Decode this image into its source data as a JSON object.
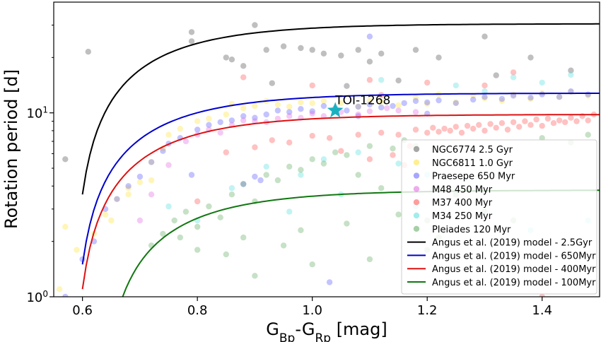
{
  "chart_data": {
    "type": "scatter",
    "title": "",
    "xlabel": {
      "base1": "G",
      "sub1": "Bp",
      "mid": "-G",
      "sub2": "Rp",
      "unit": " [mag]"
    },
    "ylabel": "Rotation period [d]",
    "xlim": [
      0.55,
      1.5
    ],
    "ylim": [
      1,
      40
    ],
    "yscale": "log",
    "grid": false,
    "legend_position": "lower-right",
    "x_ticks": [
      {
        "value": 0.6,
        "label": "0.6"
      },
      {
        "value": 0.8,
        "label": "0.8"
      },
      {
        "value": 1.0,
        "label": "1.0"
      },
      {
        "value": 1.2,
        "label": "1.2"
      },
      {
        "value": 1.4,
        "label": "1.4"
      }
    ],
    "y_ticks": [
      {
        "value": 1,
        "base": "10",
        "exp": "0"
      },
      {
        "value": 10,
        "base": "10",
        "exp": "1"
      }
    ],
    "series": [
      {
        "name": "NGC6774 2.5 Gyr",
        "color": "#808080",
        "opacity": 0.5,
        "points": [
          [
            0.57,
            5.6
          ],
          [
            0.61,
            21.5
          ],
          [
            0.79,
            27.5
          ],
          [
            0.79,
            24.5
          ],
          [
            0.85,
            20
          ],
          [
            0.86,
            19.5
          ],
          [
            0.88,
            18
          ],
          [
            0.9,
            30
          ],
          [
            0.92,
            22
          ],
          [
            0.95,
            23
          ],
          [
            0.98,
            22.5
          ],
          [
            1.0,
            22
          ],
          [
            1.02,
            21
          ],
          [
            1.05,
            20.5
          ],
          [
            1.08,
            22
          ],
          [
            1.1,
            19
          ],
          [
            1.12,
            21
          ],
          [
            1.18,
            22
          ],
          [
            1.22,
            20
          ],
          [
            1.3,
            26
          ],
          [
            1.32,
            16
          ],
          [
            1.38,
            20
          ],
          [
            1.45,
            17
          ],
          [
            0.93,
            14.5
          ],
          [
            1.06,
            14
          ],
          [
            1.15,
            15
          ]
        ]
      },
      {
        "name": "NGC6811 1.0 Gyr",
        "color": "#ffe135",
        "opacity": 0.35,
        "points": [
          [
            0.56,
            1.1
          ],
          [
            0.57,
            2.4
          ],
          [
            0.59,
            1.8
          ],
          [
            0.62,
            2.2
          ],
          [
            0.64,
            2.8
          ],
          [
            0.66,
            3.4
          ],
          [
            0.68,
            3.9
          ],
          [
            0.7,
            4.2
          ],
          [
            0.72,
            5.4
          ],
          [
            0.74,
            6.4
          ],
          [
            0.75,
            7.6
          ],
          [
            0.77,
            8.2
          ],
          [
            0.8,
            9
          ],
          [
            0.82,
            9.3
          ],
          [
            0.85,
            9.8
          ],
          [
            0.86,
            11.2
          ],
          [
            0.88,
            10.6
          ],
          [
            0.9,
            10.9
          ],
          [
            0.92,
            11.6
          ],
          [
            0.94,
            11.1
          ],
          [
            0.96,
            10.8
          ],
          [
            0.98,
            11.4
          ],
          [
            1.0,
            11.3
          ],
          [
            1.02,
            11.6
          ],
          [
            1.05,
            11.3
          ],
          [
            1.08,
            10.8
          ],
          [
            1.1,
            11.6
          ],
          [
            1.12,
            11.5
          ],
          [
            1.15,
            11
          ],
          [
            1.18,
            12.1
          ],
          [
            1.2,
            11.2
          ],
          [
            1.22,
            12.6
          ],
          [
            1.25,
            11.4
          ],
          [
            1.28,
            12.4
          ],
          [
            1.3,
            12
          ],
          [
            1.33,
            11.6
          ],
          [
            1.35,
            12.6
          ],
          [
            1.38,
            11.9
          ],
          [
            1.4,
            12.8
          ],
          [
            1.43,
            12.2
          ],
          [
            1.45,
            13
          ],
          [
            1.48,
            12.4
          ],
          [
            0.65,
            2.6
          ],
          [
            0.68,
            3.6
          ],
          [
            0.72,
            4.3
          ]
        ]
      },
      {
        "name": "Praesepe 650 Myr",
        "color": "#6a6aff",
        "opacity": 0.4,
        "points": [
          [
            0.57,
            1.0
          ],
          [
            0.6,
            1.6
          ],
          [
            0.62,
            2.0
          ],
          [
            0.64,
            3.0
          ],
          [
            0.66,
            3.4
          ],
          [
            0.68,
            4.0
          ],
          [
            0.7,
            4.5
          ],
          [
            0.72,
            5.4
          ],
          [
            0.74,
            6.2
          ],
          [
            0.75,
            6.8
          ],
          [
            0.77,
            7.3
          ],
          [
            0.79,
            4.6
          ],
          [
            0.8,
            8.1
          ],
          [
            0.82,
            8.6
          ],
          [
            0.84,
            8.9
          ],
          [
            0.86,
            9.1
          ],
          [
            0.88,
            9.6
          ],
          [
            0.9,
            9.4
          ],
          [
            0.91,
            4.3
          ],
          [
            0.92,
            9.8
          ],
          [
            0.94,
            10.3
          ],
          [
            0.96,
            10.1
          ],
          [
            0.98,
            10.5
          ],
          [
            1.0,
            10.2
          ],
          [
            1.02,
            10.9
          ],
          [
            1.04,
            10.6
          ],
          [
            1.06,
            10.3
          ],
          [
            1.08,
            10.8
          ],
          [
            1.1,
            11.1
          ],
          [
            1.12,
            10.7
          ],
          [
            1.14,
            10.9
          ],
          [
            1.16,
            11.3
          ],
          [
            1.18,
            11.6
          ],
          [
            1.2,
            11.4
          ],
          [
            1.22,
            11.7
          ],
          [
            1.25,
            11.3
          ],
          [
            1.28,
            11.8
          ],
          [
            1.3,
            12.2
          ],
          [
            1.33,
            11.9
          ],
          [
            1.35,
            12.4
          ],
          [
            1.38,
            12.1
          ],
          [
            1.4,
            12.6
          ],
          [
            1.43,
            12.2
          ],
          [
            1.45,
            13.1
          ],
          [
            1.48,
            12.6
          ],
          [
            1.1,
            26
          ],
          [
            1.03,
            1.2
          ],
          [
            0.88,
            4.1
          ],
          [
            0.9,
            4.5
          ],
          [
            1.08,
            9.6
          ],
          [
            1.2,
            9.9
          ]
        ]
      },
      {
        "name": "M48 450 Myr",
        "color": "#e066e0",
        "opacity": 0.35,
        "points": [
          [
            0.7,
            2.6
          ],
          [
            0.72,
            3.6
          ],
          [
            0.75,
            5.2
          ],
          [
            0.78,
            7.0
          ],
          [
            0.8,
            7.6
          ],
          [
            0.82,
            8.1
          ],
          [
            0.84,
            7.8
          ],
          [
            0.86,
            8.6
          ],
          [
            0.88,
            9.1
          ],
          [
            0.9,
            9.0
          ],
          [
            0.92,
            8.9
          ],
          [
            0.94,
            9.3
          ],
          [
            0.96,
            9.6
          ],
          [
            0.98,
            9.4
          ],
          [
            1.0,
            9.9
          ],
          [
            1.02,
            9.6
          ],
          [
            1.05,
            10.1
          ],
          [
            1.08,
            9.8
          ],
          [
            1.1,
            10.2
          ],
          [
            1.13,
            10.6
          ],
          [
            1.15,
            10.3
          ],
          [
            1.18,
            10.1
          ]
        ]
      },
      {
        "name": "M37 400 Myr",
        "color": "#ff4d4d",
        "opacity": 0.35,
        "points": [
          [
            0.8,
            3.3
          ],
          [
            0.85,
            6.1
          ],
          [
            0.88,
            15.6
          ],
          [
            0.9,
            6.5
          ],
          [
            0.93,
            7.1
          ],
          [
            0.96,
            6.9
          ],
          [
            1.0,
            7.5
          ],
          [
            1.03,
            7.3
          ],
          [
            1.05,
            6.2
          ],
          [
            1.08,
            7.6
          ],
          [
            1.1,
            5.6
          ],
          [
            1.12,
            7.8
          ],
          [
            1.14,
            5.9
          ],
          [
            1.15,
            7.6
          ],
          [
            1.17,
            6.6
          ],
          [
            1.18,
            8.1
          ],
          [
            1.2,
            7.8
          ],
          [
            1.21,
            8.3
          ],
          [
            1.22,
            7.9
          ],
          [
            1.23,
            8.2
          ],
          [
            1.24,
            8.0
          ],
          [
            1.25,
            8.4
          ],
          [
            1.26,
            7.8
          ],
          [
            1.27,
            8.5
          ],
          [
            1.28,
            8.2
          ],
          [
            1.29,
            8.6
          ],
          [
            1.3,
            8.0
          ],
          [
            1.31,
            8.7
          ],
          [
            1.32,
            8.3
          ],
          [
            1.33,
            8.8
          ],
          [
            1.34,
            8.1
          ],
          [
            1.35,
            8.9
          ],
          [
            1.36,
            8.4
          ],
          [
            1.37,
            9.0
          ],
          [
            1.38,
            8.6
          ],
          [
            1.39,
            9.2
          ],
          [
            1.4,
            8.5
          ],
          [
            1.41,
            9.3
          ],
          [
            1.42,
            8.8
          ],
          [
            1.43,
            9.1
          ],
          [
            1.44,
            8.9
          ],
          [
            1.45,
            9.4
          ],
          [
            1.46,
            9.0
          ],
          [
            1.47,
            9.6
          ],
          [
            1.48,
            9.1
          ],
          [
            1.49,
            9.8
          ],
          [
            1.3,
            14.1
          ],
          [
            1.35,
            16.6
          ],
          [
            1.4,
            1.0
          ],
          [
            1.1,
            15.1
          ],
          [
            1.2,
            14.6
          ],
          [
            1.0,
            14.1
          ],
          [
            1.16,
            5.2
          ],
          [
            1.12,
            12.5
          ]
        ]
      },
      {
        "name": "M34 250 Myr",
        "color": "#66e0e0",
        "opacity": 0.4,
        "points": [
          [
            0.75,
            3.1
          ],
          [
            0.8,
            2.6
          ],
          [
            0.86,
            3.9
          ],
          [
            0.92,
            5.1
          ],
          [
            0.98,
            4.6
          ],
          [
            1.02,
            5.6
          ],
          [
            1.05,
            3.6
          ],
          [
            1.08,
            6.1
          ],
          [
            1.12,
            15.1
          ],
          [
            1.15,
            5.3
          ],
          [
            1.2,
            4.6
          ],
          [
            1.25,
            14.1
          ],
          [
            1.3,
            13.1
          ],
          [
            1.35,
            15.6
          ],
          [
            1.4,
            14.6
          ],
          [
            1.45,
            16.1
          ],
          [
            1.38,
            2.3
          ],
          [
            1.48,
            2.6
          ],
          [
            1.18,
            3.1
          ],
          [
            0.96,
            2.9
          ]
        ]
      },
      {
        "name": "Pleiades 120 Myr",
        "color": "#5ca85c",
        "opacity": 0.35,
        "points": [
          [
            0.72,
            1.9
          ],
          [
            0.74,
            2.2
          ],
          [
            0.76,
            2.6
          ],
          [
            0.78,
            2.9
          ],
          [
            0.8,
            2.4
          ],
          [
            0.82,
            3.1
          ],
          [
            0.84,
            2.7
          ],
          [
            0.86,
            3.6
          ],
          [
            0.88,
            4.1
          ],
          [
            0.9,
            3.3
          ],
          [
            0.92,
            4.6
          ],
          [
            0.94,
            4.3
          ],
          [
            0.96,
            5.1
          ],
          [
            0.98,
            4.9
          ],
          [
            1.0,
            5.6
          ],
          [
            1.02,
            5.3
          ],
          [
            1.04,
            6.1
          ],
          [
            1.06,
            5.9
          ],
          [
            1.08,
            4.6
          ],
          [
            1.1,
            6.6
          ],
          [
            1.12,
            3.9
          ],
          [
            1.14,
            6.4
          ],
          [
            1.16,
            7.1
          ],
          [
            1.18,
            6.6
          ],
          [
            1.2,
            2.6
          ],
          [
            1.22,
            2.1
          ],
          [
            1.25,
            3.6
          ],
          [
            1.3,
            2.9
          ],
          [
            1.35,
            2.6
          ],
          [
            1.4,
            7.3
          ],
          [
            1.45,
            6.9
          ],
          [
            1.48,
            7.6
          ],
          [
            0.9,
            1.3
          ],
          [
            1.0,
            1.5
          ],
          [
            1.1,
            1.6
          ],
          [
            0.85,
            1.7
          ],
          [
            0.95,
            1.9
          ],
          [
            1.2,
            1.8
          ],
          [
            0.8,
            1.8
          ],
          [
            0.77,
            2.1
          ],
          [
            0.88,
            2.1
          ],
          [
            0.98,
            2.3
          ],
          [
            1.06,
            2.5
          ],
          [
            1.15,
            2.8
          ]
        ]
      }
    ],
    "models": [
      {
        "name": "Angus et al. (2019) model - 2.5Gyr",
        "color": "#000000",
        "x_start": 0.6,
        "x_end": 1.5,
        "y_inf": 30.5,
        "y_start": 3.6,
        "k": 7.0
      },
      {
        "name": "Angus et al. (2019) model - 650Myr",
        "color": "#0000cc",
        "x_start": 0.6,
        "x_end": 1.5,
        "y_inf": 12.8,
        "y_start": 1.5,
        "k": 7.0
      },
      {
        "name": "Angus et al. (2019) model - 400Myr",
        "color": "#dd1111",
        "x_start": 0.6,
        "x_end": 1.5,
        "y_inf": 9.8,
        "y_start": 1.1,
        "k": 7.0
      },
      {
        "name": "Angus et al. (2019) model - 100Myr",
        "color": "#117711",
        "x_start": 0.67,
        "x_end": 1.5,
        "y_inf": 3.8,
        "y_start": 1.0,
        "k": 7.0
      }
    ],
    "annotation": {
      "label": "TOI-1268",
      "x": 1.04,
      "y": 10.3,
      "marker": "star",
      "color": "#1ab0c0"
    }
  }
}
